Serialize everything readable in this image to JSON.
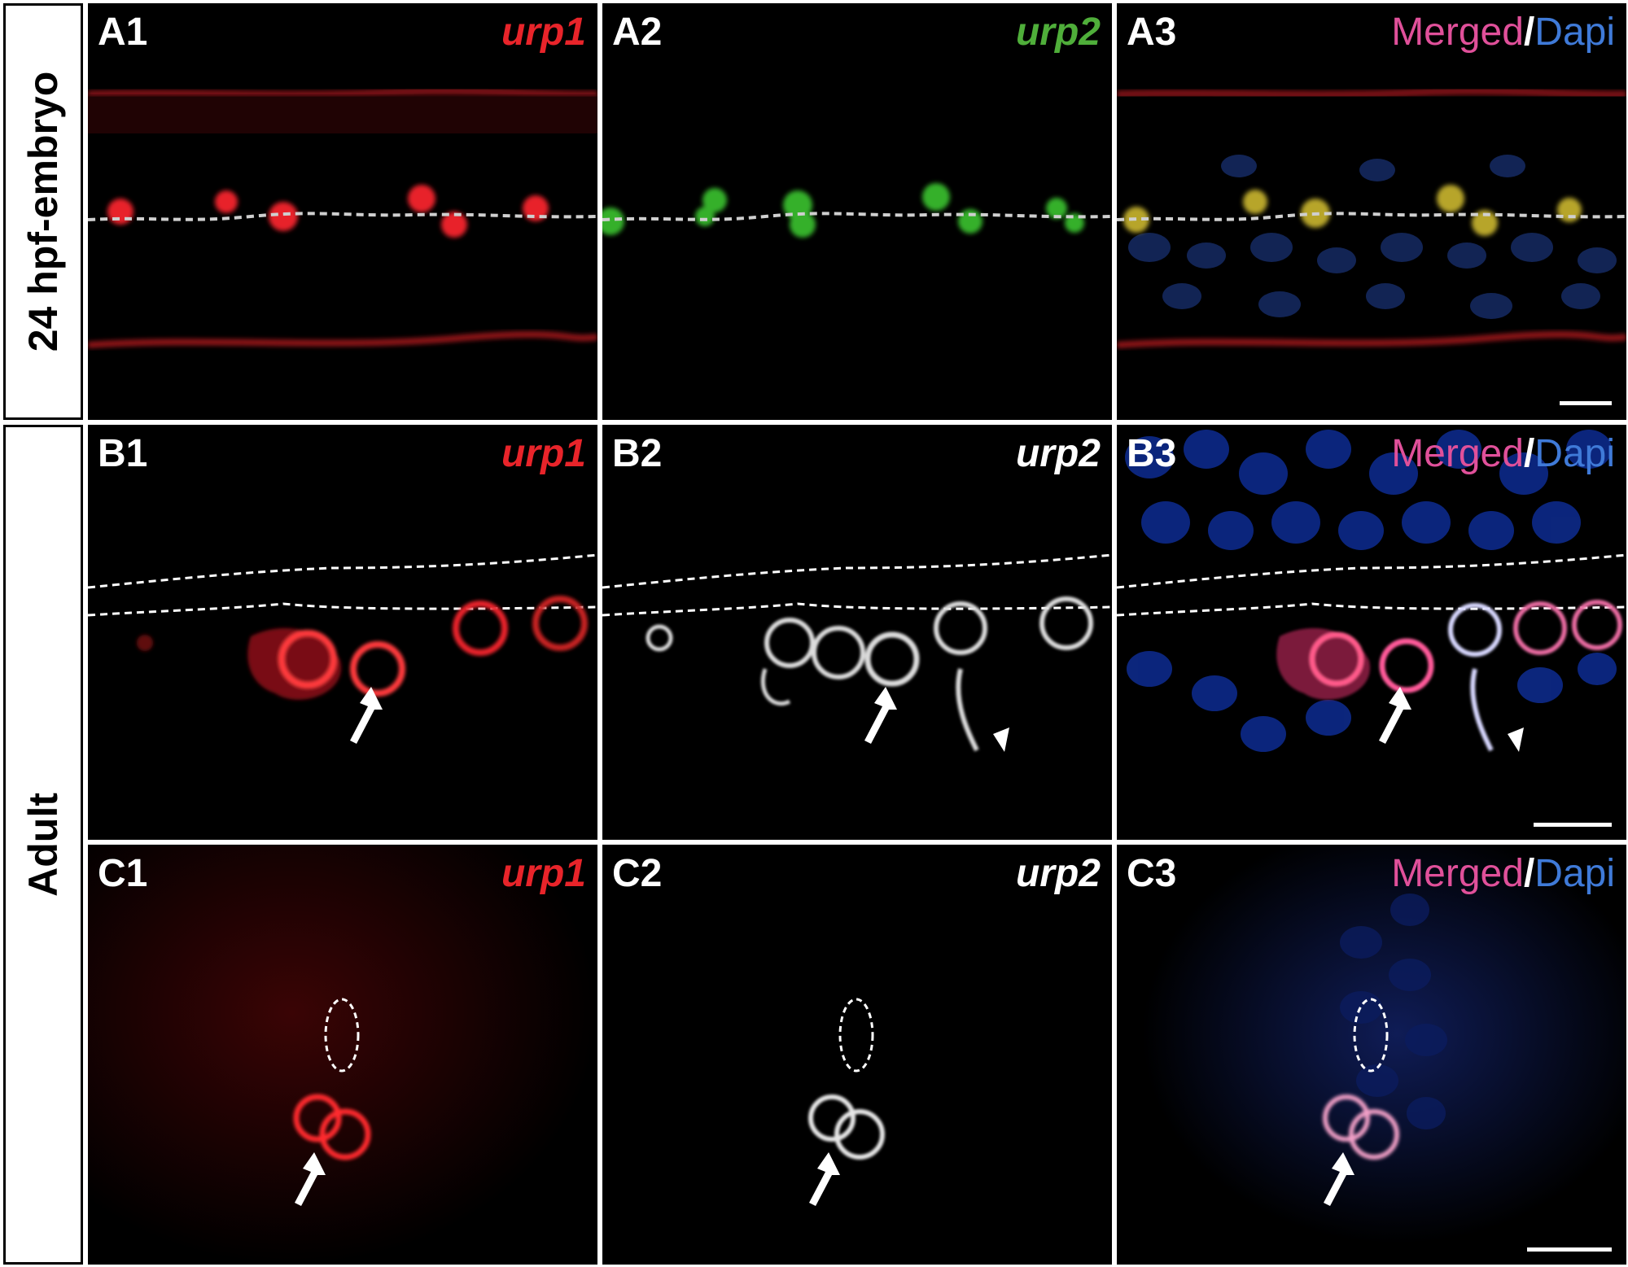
{
  "row_labels": {
    "a": "24 hpf-embryo",
    "bc": "Adult"
  },
  "panels": {
    "A1": {
      "label": "A1",
      "gene": "urp1"
    },
    "A2": {
      "label": "A2",
      "gene": "urp2"
    },
    "A3": {
      "label": "A3",
      "merged": "Merged",
      "slash": "/",
      "dapi": "Dapi"
    },
    "B1": {
      "label": "B1",
      "gene": "urp1"
    },
    "B2": {
      "label": "B2",
      "gene": "urp2"
    },
    "B3": {
      "label": "B3",
      "merged": "Merged",
      "slash": "/",
      "dapi": "Dapi"
    },
    "C1": {
      "label": "C1",
      "gene": "urp1"
    },
    "C2": {
      "label": "C2",
      "gene": "urp2"
    },
    "C3": {
      "label": "C3",
      "merged": "Merged",
      "slash": "/",
      "dapi": "Dapi"
    }
  },
  "colors": {
    "urp1": "#e8242a",
    "urp2_embryo": "#4fae3a",
    "urp2_adult": "#ffffff",
    "merged": "#e0509a",
    "dapi": "#3f7ad8"
  }
}
